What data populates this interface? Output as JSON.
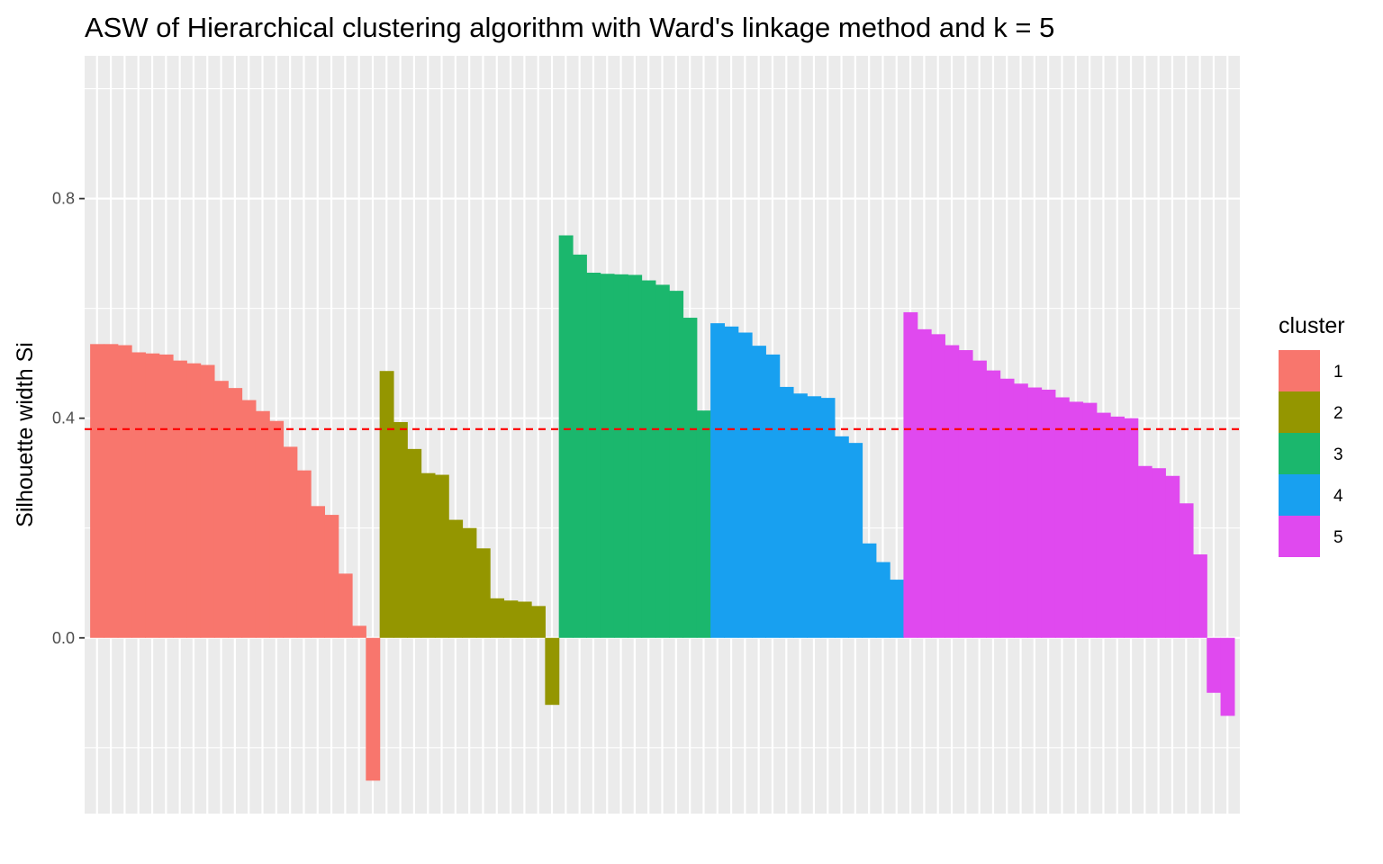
{
  "chart_data": {
    "type": "bar",
    "title": "ASW of Hierarchical clustering algorithm with Ward's linkage method and k = 5",
    "xlabel": "",
    "ylabel": "Silhouette width Si",
    "ylim": [
      -0.32,
      1.06
    ],
    "yticks": [
      {
        "value": 0.0,
        "label": "0.0"
      },
      {
        "value": 0.4,
        "label": "0.4"
      },
      {
        "value": 0.8,
        "label": "0.8"
      }
    ],
    "grid": true,
    "reference_line": {
      "value": 0.38,
      "color": "#ff0000",
      "style": "dashed"
    },
    "legend": {
      "title": "cluster",
      "placement": "right"
    },
    "clusters": [
      {
        "name": "1",
        "color": "#f8766d",
        "values": [
          0.535,
          0.535,
          0.533,
          0.52,
          0.518,
          0.516,
          0.505,
          0.5,
          0.497,
          0.468,
          0.455,
          0.433,
          0.413,
          0.395,
          0.348,
          0.305,
          0.24,
          0.224,
          0.117,
          0.022,
          -0.26
        ]
      },
      {
        "name": "2",
        "color": "#949600",
        "values": [
          0.486,
          0.393,
          0.344,
          0.3,
          0.297,
          0.215,
          0.2,
          0.163,
          0.072,
          0.068,
          0.066,
          0.058,
          -0.122
        ]
      },
      {
        "name": "3",
        "color": "#1bb76d",
        "values": [
          0.733,
          0.698,
          0.665,
          0.663,
          0.662,
          0.661,
          0.651,
          0.643,
          0.632,
          0.583,
          0.414
        ]
      },
      {
        "name": "4",
        "color": "#18a0f0",
        "values": [
          0.573,
          0.567,
          0.556,
          0.532,
          0.516,
          0.457,
          0.445,
          0.44,
          0.437,
          0.367,
          0.355,
          0.172,
          0.138,
          0.106
        ]
      },
      {
        "name": "5",
        "color": "#e049ef",
        "values": [
          0.593,
          0.562,
          0.553,
          0.533,
          0.524,
          0.505,
          0.487,
          0.472,
          0.463,
          0.456,
          0.452,
          0.438,
          0.43,
          0.428,
          0.41,
          0.403,
          0.4,
          0.313,
          0.309,
          0.295,
          0.245,
          0.152,
          -0.1,
          -0.142
        ]
      }
    ]
  }
}
